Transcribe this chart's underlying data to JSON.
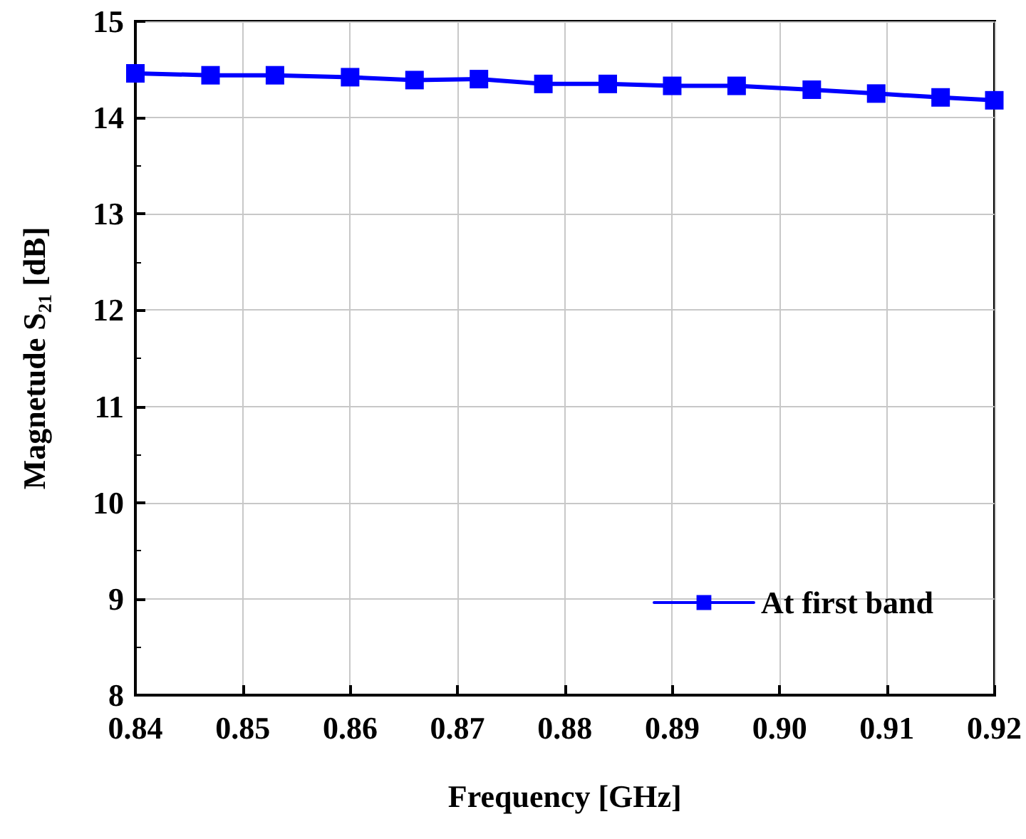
{
  "chart_data": {
    "type": "line",
    "xlabel": "Frequency [GHz]",
    "ylabel": "Magnetude S₂₁ [dB]",
    "x": [
      0.84,
      0.847,
      0.853,
      0.86,
      0.866,
      0.872,
      0.878,
      0.884,
      0.89,
      0.896,
      0.903,
      0.909,
      0.915,
      0.92
    ],
    "series": [
      {
        "name": "At first band",
        "color": "#0000ff",
        "values": [
          14.46,
          14.44,
          14.44,
          14.42,
          14.39,
          14.4,
          14.35,
          14.35,
          14.33,
          14.33,
          14.29,
          14.25,
          14.21,
          14.18
        ]
      }
    ],
    "xlim": [
      0.84,
      0.92
    ],
    "xticks": [
      {
        "value": 0.84,
        "label": "0.84"
      },
      {
        "value": 0.85,
        "label": "0.85"
      },
      {
        "value": 0.86,
        "label": "0.86"
      },
      {
        "value": 0.87,
        "label": "0.87"
      },
      {
        "value": 0.88,
        "label": "0.88"
      },
      {
        "value": 0.89,
        "label": "0.89"
      },
      {
        "value": 0.9,
        "label": "0.90"
      },
      {
        "value": 0.91,
        "label": "0.91"
      },
      {
        "value": 0.92,
        "label": "0.92"
      }
    ],
    "ylim": [
      8,
      15
    ],
    "yticks": [
      8,
      9,
      10,
      11,
      12,
      13,
      14,
      15
    ],
    "grid": true,
    "legend": "bottom right",
    "marker": "square",
    "line_style": "solid"
  }
}
